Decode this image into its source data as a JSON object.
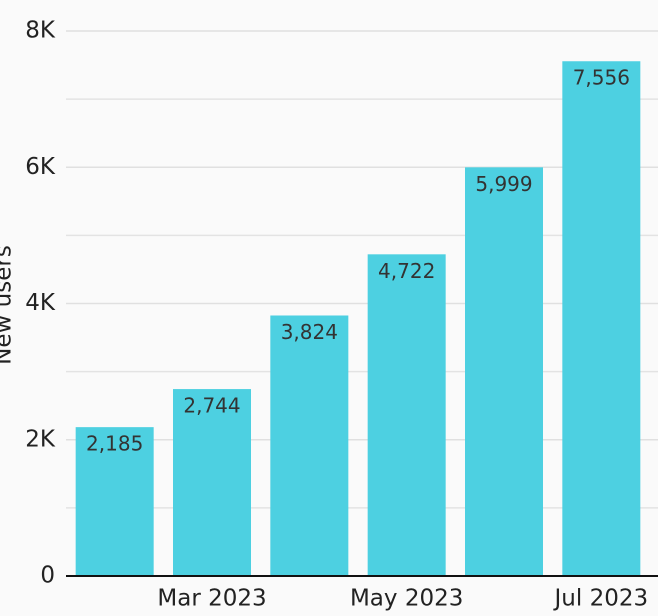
{
  "chart_data": {
    "type": "bar",
    "ylabel": "New users",
    "categories": [
      null,
      "Mar 2023",
      null,
      "May 2023",
      null,
      "Jul 2023"
    ],
    "values": [
      2185,
      2744,
      3824,
      4722,
      5999,
      7556
    ],
    "value_labels": [
      "2,185",
      "2,744",
      "3,824",
      "4,722",
      "5,999",
      "7,556"
    ],
    "color": "#4dd0e1",
    "ylim": [
      0,
      8000
    ],
    "yticks": [
      0,
      {
        "value": 2000,
        "label": "2K"
      },
      {
        "value": 4000,
        "label": "4K"
      },
      {
        "value": 6000,
        "label": "6K"
      },
      {
        "value": 8000,
        "label": "8K"
      }
    ],
    "yminor_ticks": [
      1000,
      3000,
      5000,
      7000
    ],
    "grid": true
  }
}
